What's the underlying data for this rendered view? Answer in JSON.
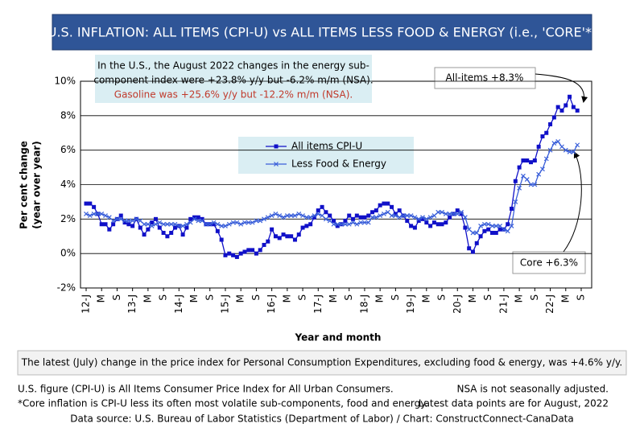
{
  "chart_data": {
    "type": "line",
    "title": "U.S. INFLATION: ALL ITEMS (CPI-U) vs ALL ITEMS LESS FOOD & ENERGY (i.e., 'CORE'*)",
    "note_lines": [
      "In the U.S., the August 2022 changes in the energy sub-",
      "component index were +23.8% y/y but -6.2% m/m (NSA).",
      "Gasoline was +25.6% y/y but -12.2% m/m (NSA)."
    ],
    "annotations": [
      "All-items +8.3%",
      "Core +6.3%"
    ],
    "xlabel": "Year and month",
    "ylabel": [
      "Per cent change",
      "(year over year)"
    ],
    "ylim": [
      -2,
      10
    ],
    "yticks": [
      {
        "value": -2,
        "label": "-2%"
      },
      {
        "value": 0,
        "label": "0%"
      },
      {
        "value": 2,
        "label": "2%"
      },
      {
        "value": 4,
        "label": "4%"
      },
      {
        "value": 6,
        "label": "6%"
      },
      {
        "value": 8,
        "label": "8%"
      },
      {
        "value": 10,
        "label": "10%"
      }
    ],
    "grid": true,
    "categories": [
      "12-J",
      null,
      null,
      null,
      "M",
      null,
      null,
      null,
      "S",
      null,
      null,
      null,
      "13-J",
      null,
      null,
      null,
      "M",
      null,
      null,
      null,
      "S",
      null,
      null,
      null,
      "14-J",
      null,
      null,
      null,
      "M",
      null,
      null,
      null,
      "S",
      null,
      null,
      null,
      "15-J",
      null,
      null,
      null,
      "M",
      null,
      null,
      null,
      "S",
      null,
      null,
      null,
      "16-J",
      null,
      null,
      null,
      "M",
      null,
      null,
      null,
      "S",
      null,
      null,
      null,
      "17-J",
      null,
      null,
      null,
      "M",
      null,
      null,
      null,
      "S",
      null,
      null,
      null,
      "18-J",
      null,
      null,
      null,
      "M",
      null,
      null,
      null,
      "S",
      null,
      null,
      null,
      "19-J",
      null,
      null,
      null,
      "M",
      null,
      null,
      null,
      "S",
      null,
      null,
      null,
      "20-J",
      null,
      null,
      null,
      "M",
      null,
      null,
      null,
      "S",
      null,
      null,
      null,
      "21-J",
      null,
      null,
      null,
      "M",
      null,
      null,
      null,
      "S",
      null,
      null,
      null,
      "22-J",
      null,
      null,
      null,
      "M",
      null,
      null,
      null,
      "S"
    ],
    "series": [
      {
        "name": "All items CPI-U",
        "color": "#1010c8",
        "marker": "square",
        "values": [
          2.9,
          2.9,
          2.7,
          2.3,
          1.7,
          1.7,
          1.4,
          1.7,
          2.0,
          2.2,
          1.8,
          1.7,
          1.6,
          2.0,
          1.5,
          1.1,
          1.4,
          1.8,
          2.0,
          1.5,
          1.2,
          1.0,
          1.2,
          1.5,
          1.6,
          1.1,
          1.5,
          2.0,
          2.1,
          2.1,
          2.0,
          1.7,
          1.7,
          1.7,
          1.3,
          0.8,
          -0.1,
          0.0,
          -0.1,
          -0.2,
          0.0,
          0.1,
          0.2,
          0.2,
          0.0,
          0.2,
          0.5,
          0.7,
          1.4,
          1.0,
          0.9,
          1.1,
          1.0,
          1.0,
          0.8,
          1.1,
          1.5,
          1.6,
          1.7,
          2.1,
          2.5,
          2.7,
          2.4,
          2.2,
          1.9,
          1.6,
          1.7,
          1.9,
          2.2,
          2.0,
          2.2,
          2.1,
          2.1,
          2.2,
          2.4,
          2.5,
          2.8,
          2.9,
          2.9,
          2.7,
          2.3,
          2.5,
          2.2,
          1.9,
          1.6,
          1.5,
          1.9,
          2.0,
          1.8,
          1.6,
          1.8,
          1.7,
          1.7,
          1.8,
          2.1,
          2.3,
          2.5,
          2.3,
          1.5,
          0.3,
          0.1,
          0.6,
          1.0,
          1.3,
          1.4,
          1.2,
          1.2,
          1.4,
          1.4,
          1.7,
          2.6,
          4.2,
          5.0,
          5.4,
          5.4,
          5.3,
          5.4,
          6.2,
          6.8,
          7.0,
          7.5,
          7.9,
          8.5,
          8.3,
          8.6,
          9.1,
          8.5,
          8.3,
          null
        ]
      },
      {
        "name": "Less Food & Energy",
        "color": "#3a5fd9",
        "marker": "x",
        "values": [
          2.3,
          2.2,
          2.3,
          2.3,
          2.3,
          2.2,
          2.1,
          1.9,
          2.0,
          2.0,
          1.9,
          1.9,
          1.9,
          2.0,
          1.9,
          1.7,
          1.7,
          1.6,
          1.7,
          1.8,
          1.7,
          1.7,
          1.7,
          1.7,
          1.6,
          1.6,
          1.7,
          1.8,
          2.0,
          1.9,
          1.9,
          1.7,
          1.7,
          1.8,
          1.7,
          1.6,
          1.6,
          1.7,
          1.8,
          1.8,
          1.7,
          1.8,
          1.8,
          1.8,
          1.9,
          1.9,
          2.0,
          2.1,
          2.2,
          2.3,
          2.2,
          2.1,
          2.2,
          2.2,
          2.2,
          2.3,
          2.2,
          2.1,
          2.1,
          2.2,
          2.3,
          2.2,
          2.0,
          1.9,
          1.7,
          1.7,
          1.7,
          1.7,
          1.7,
          1.8,
          1.7,
          1.8,
          1.8,
          1.8,
          2.1,
          2.1,
          2.2,
          2.3,
          2.4,
          2.2,
          2.2,
          2.1,
          2.2,
          2.2,
          2.2,
          2.1,
          2.0,
          2.1,
          2.0,
          2.1,
          2.2,
          2.4,
          2.4,
          2.3,
          2.3,
          2.3,
          2.3,
          2.4,
          2.1,
          1.4,
          1.2,
          1.2,
          1.6,
          1.7,
          1.7,
          1.6,
          1.6,
          1.6,
          1.4,
          1.3,
          1.6,
          3.0,
          3.8,
          4.5,
          4.3,
          4.0,
          4.0,
          4.6,
          4.9,
          5.5,
          6.0,
          6.4,
          6.5,
          6.2,
          6.0,
          5.9,
          5.9,
          6.3,
          null
        ]
      }
    ]
  },
  "footer": {
    "highlight": "The latest (July) change in the price index for Personal Consumption Expenditures, excluding food & energy, was +4.6% y/y.",
    "notes_left": [
      "U.S. figure (CPI-U) is All Items Consumer Price Index for All Urban Consumers.",
      "*Core inflation is CPI-U less its often most volatile sub-components, food and energy."
    ],
    "notes_right": [
      "NSA is not seasonally adjusted.",
      "Latest data points are for August, 2022"
    ],
    "source": "Data source: U.S. Bureau of Labor Statistics (Department of Labor) / Chart: ConstructConnect-CanaData"
  }
}
